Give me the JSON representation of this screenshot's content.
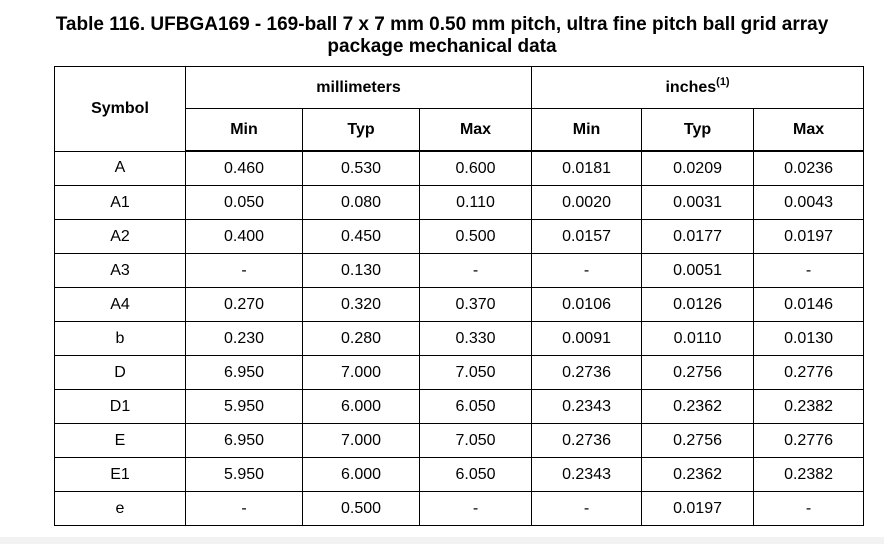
{
  "caption": {
    "line1": "Table 116. UFBGA169 - 169-ball 7 x 7 mm 0.50 mm pitch, ultra fine pitch ball grid array",
    "line2": "package mechanical data"
  },
  "header": {
    "symbol": "Symbol",
    "group_mm": "millimeters",
    "group_in": "inches",
    "group_in_note": "(1)",
    "min": "Min",
    "typ": "Typ",
    "max": "Max"
  },
  "rows": [
    [
      "A",
      "0.460",
      "0.530",
      "0.600",
      "0.0181",
      "0.0209",
      "0.0236"
    ],
    [
      "A1",
      "0.050",
      "0.080",
      "0.110",
      "0.0020",
      "0.0031",
      "0.0043"
    ],
    [
      "A2",
      "0.400",
      "0.450",
      "0.500",
      "0.0157",
      "0.0177",
      "0.0197"
    ],
    [
      "A3",
      "-",
      "0.130",
      "-",
      "-",
      "0.0051",
      "-"
    ],
    [
      "A4",
      "0.270",
      "0.320",
      "0.370",
      "0.0106",
      "0.0126",
      "0.0146"
    ],
    [
      "b",
      "0.230",
      "0.280",
      "0.330",
      "0.0091",
      "0.0110",
      "0.0130"
    ],
    [
      "D",
      "6.950",
      "7.000",
      "7.050",
      "0.2736",
      "0.2756",
      "0.2776"
    ],
    [
      "D1",
      "5.950",
      "6.000",
      "6.050",
      "0.2343",
      "0.2362",
      "0.2382"
    ],
    [
      "E",
      "6.950",
      "7.000",
      "7.050",
      "0.2736",
      "0.2756",
      "0.2776"
    ],
    [
      "E1",
      "5.950",
      "6.000",
      "6.050",
      "0.2343",
      "0.2362",
      "0.2382"
    ],
    [
      "e",
      "-",
      "0.500",
      "-",
      "-",
      "0.0197",
      "-"
    ]
  ]
}
